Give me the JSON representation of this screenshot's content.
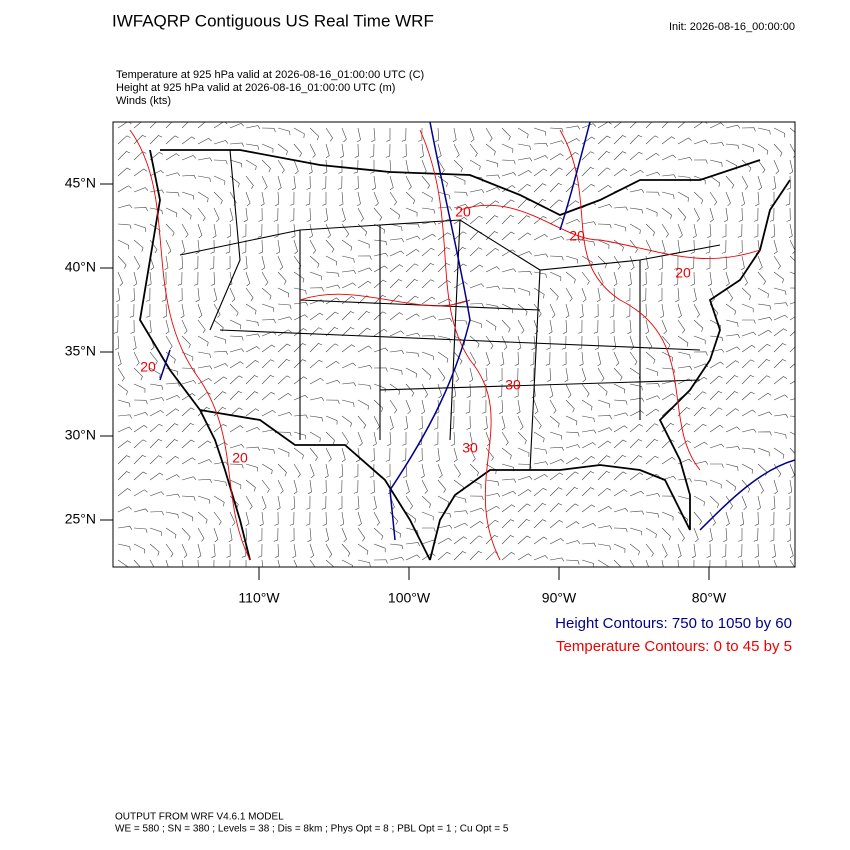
{
  "header": {
    "title": "IWFAQRP Contiguous US Real Time WRF",
    "init": "Init: 2026-08-16_00:00:00",
    "lines": [
      "Temperature at 925 hPa valid at 2026-08-16_01:00:00 UTC   (C)",
      "Height at 925 hPa valid at 2026-08-16_01:00:00 UTC   (m)",
      "Winds   (kts)"
    ]
  },
  "map": {
    "lat_ticks": [
      {
        "value": 45,
        "label": "45°N"
      },
      {
        "value": 40,
        "label": "40°N"
      },
      {
        "value": 35,
        "label": "35°N"
      },
      {
        "value": 30,
        "label": "30°N"
      },
      {
        "value": 25,
        "label": "25°N"
      }
    ],
    "lon_ticks": [
      {
        "value": -110,
        "label": "110°W"
      },
      {
        "value": -100,
        "label": "100°W"
      },
      {
        "value": -90,
        "label": "90°W"
      },
      {
        "value": -80,
        "label": "80°W"
      }
    ],
    "contour_labels": [
      "20",
      "20",
      "20",
      "30",
      "30",
      "20",
      "20"
    ]
  },
  "legend": {
    "height": "Height Contours: 750 to 1050 by 60",
    "temperature": "Temperature Contours: 0 to 45 by 5"
  },
  "footer": {
    "lines": [
      "OUTPUT FROM WRF V4.6.1 MODEL",
      "WE = 580 ; SN = 380 ; Levels = 38 ; Dis = 8km ; Phys Opt = 8 ; PBL Opt = 1 ; Cu Opt = 5"
    ]
  }
}
